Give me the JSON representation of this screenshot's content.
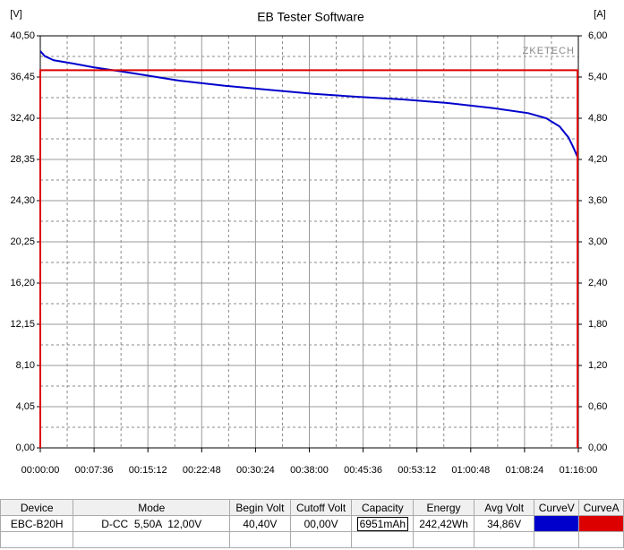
{
  "chart_data": {
    "type": "line",
    "title": "EB Tester Software",
    "ylabel": "[V]",
    "y2label": "[A]",
    "watermark": "ZKETECH",
    "xlim": [
      0,
      4560
    ],
    "xticks": [
      {
        "value": 0,
        "label": "00:00:00"
      },
      {
        "value": 456,
        "label": "00:07:36"
      },
      {
        "value": 912,
        "label": "00:15:12"
      },
      {
        "value": 1368,
        "label": "00:22:48"
      },
      {
        "value": 1824,
        "label": "00:30:24"
      },
      {
        "value": 2280,
        "label": "00:38:00"
      },
      {
        "value": 2736,
        "label": "00:45:36"
      },
      {
        "value": 3192,
        "label": "00:53:12"
      },
      {
        "value": 3648,
        "label": "01:00:48"
      },
      {
        "value": 4104,
        "label": "01:08:24"
      },
      {
        "value": 4560,
        "label": "01:16:00"
      }
    ],
    "ylim": [
      0,
      40.5
    ],
    "yticks": [
      {
        "value": 0,
        "label": "0,00"
      },
      {
        "value": 4.05,
        "label": "4,05"
      },
      {
        "value": 8.1,
        "label": "8,10"
      },
      {
        "value": 12.15,
        "label": "12,15"
      },
      {
        "value": 16.2,
        "label": "16,20"
      },
      {
        "value": 20.25,
        "label": "20,25"
      },
      {
        "value": 24.3,
        "label": "24,30"
      },
      {
        "value": 28.35,
        "label": "28,35"
      },
      {
        "value": 32.4,
        "label": "32,40"
      },
      {
        "value": 36.45,
        "label": "36,45"
      },
      {
        "value": 40.5,
        "label": "40,50"
      }
    ],
    "y2lim": [
      0,
      6
    ],
    "y2ticks": [
      {
        "value": 0,
        "label": "0,00"
      },
      {
        "value": 0.6,
        "label": "0,60"
      },
      {
        "value": 1.2,
        "label": "1,20"
      },
      {
        "value": 1.8,
        "label": "1,80"
      },
      {
        "value": 2.4,
        "label": "2,40"
      },
      {
        "value": 3,
        "label": "3,00"
      },
      {
        "value": 3.6,
        "label": "3,60"
      },
      {
        "value": 4.2,
        "label": "4,20"
      },
      {
        "value": 4.8,
        "label": "4,80"
      },
      {
        "value": 5.4,
        "label": "5,40"
      },
      {
        "value": 6,
        "label": "6,00"
      }
    ],
    "grid": true,
    "series": [
      {
        "color": "#0000cc",
        "x": [
          0,
          38,
          114,
          266,
          456,
          797,
          1176,
          1556,
          1935,
          2315,
          2694,
          3074,
          3453,
          3833,
          4136,
          4288,
          4401,
          4477,
          4515,
          4553
        ],
        "values": [
          39.0,
          38.5,
          38.1,
          37.8,
          37.4,
          36.8,
          36.1,
          35.6,
          35.2,
          34.8,
          34.5,
          34.25,
          33.9,
          33.4,
          32.9,
          32.4,
          31.6,
          30.5,
          29.6,
          28.6
        ]
      },
      {
        "color": "#dd0000",
        "axis": "y2",
        "x": [
          0,
          0,
          4553,
          4553
        ],
        "values": [
          0,
          5.5,
          5.5,
          0
        ]
      }
    ]
  },
  "table": {
    "headers": [
      "Device",
      "Mode",
      "Begin Volt",
      "Cutoff Volt",
      "Capacity",
      "Energy",
      "Avg Volt",
      "CurveV",
      "CurveA"
    ],
    "rows": [
      [
        "EBC-B20H",
        "D-CC  5,50A  12,00V",
        "40,40V",
        "00,00V",
        "6951mAh",
        "242,42Wh",
        "34,86V"
      ]
    ]
  }
}
